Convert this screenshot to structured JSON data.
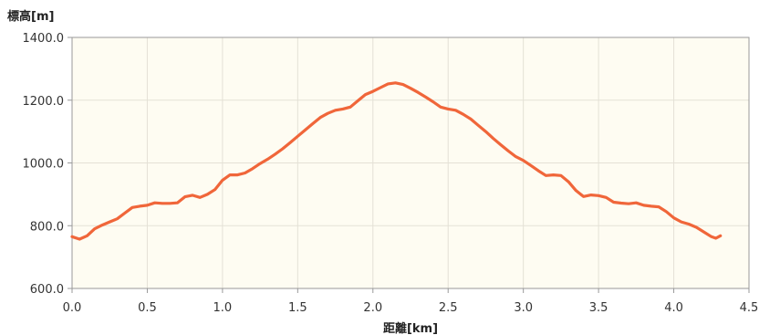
{
  "chart_data": {
    "type": "line",
    "title": "",
    "ylabel": "標高[m]",
    "xlabel": "距離[km]",
    "xlim": [
      0.0,
      4.5
    ],
    "ylim": [
      600.0,
      1400.0
    ],
    "x_ticks": [
      "0.0",
      "0.5",
      "1.0",
      "1.5",
      "2.0",
      "2.5",
      "3.0",
      "3.5",
      "4.0",
      "4.5"
    ],
    "y_ticks": [
      "1400.0",
      "1200.0",
      "1000.0",
      "800.0",
      "600.0"
    ],
    "grid": true,
    "legend": "none",
    "colors": {
      "line": "#f0663a",
      "plot_bg": "#fefcf2",
      "grid": "#e4e1d6",
      "frame": "#999999"
    },
    "series": [
      {
        "values": [
          [
            0.0,
            765
          ],
          [
            0.05,
            757
          ],
          [
            0.1,
            768
          ],
          [
            0.15,
            790
          ],
          [
            0.2,
            802
          ],
          [
            0.25,
            812
          ],
          [
            0.3,
            822
          ],
          [
            0.35,
            840
          ],
          [
            0.4,
            858
          ],
          [
            0.45,
            862
          ],
          [
            0.5,
            865
          ],
          [
            0.55,
            873
          ],
          [
            0.6,
            871
          ],
          [
            0.65,
            871
          ],
          [
            0.7,
            873
          ],
          [
            0.75,
            892
          ],
          [
            0.8,
            897
          ],
          [
            0.85,
            890
          ],
          [
            0.9,
            900
          ],
          [
            0.95,
            915
          ],
          [
            1.0,
            945
          ],
          [
            1.05,
            962
          ],
          [
            1.1,
            962
          ],
          [
            1.15,
            968
          ],
          [
            1.2,
            982
          ],
          [
            1.25,
            998
          ],
          [
            1.3,
            1012
          ],
          [
            1.35,
            1028
          ],
          [
            1.4,
            1045
          ],
          [
            1.45,
            1065
          ],
          [
            1.5,
            1085
          ],
          [
            1.55,
            1105
          ],
          [
            1.6,
            1125
          ],
          [
            1.65,
            1145
          ],
          [
            1.7,
            1158
          ],
          [
            1.75,
            1168
          ],
          [
            1.8,
            1172
          ],
          [
            1.85,
            1178
          ],
          [
            1.9,
            1198
          ],
          [
            1.95,
            1218
          ],
          [
            2.0,
            1228
          ],
          [
            2.05,
            1240
          ],
          [
            2.1,
            1252
          ],
          [
            2.15,
            1255
          ],
          [
            2.2,
            1250
          ],
          [
            2.25,
            1238
          ],
          [
            2.3,
            1225
          ],
          [
            2.35,
            1210
          ],
          [
            2.4,
            1195
          ],
          [
            2.45,
            1178
          ],
          [
            2.5,
            1172
          ],
          [
            2.55,
            1168
          ],
          [
            2.6,
            1155
          ],
          [
            2.65,
            1140
          ],
          [
            2.7,
            1120
          ],
          [
            2.75,
            1100
          ],
          [
            2.8,
            1078
          ],
          [
            2.85,
            1058
          ],
          [
            2.9,
            1038
          ],
          [
            2.95,
            1020
          ],
          [
            3.0,
            1008
          ],
          [
            3.05,
            992
          ],
          [
            3.1,
            975
          ],
          [
            3.15,
            960
          ],
          [
            3.2,
            962
          ],
          [
            3.25,
            960
          ],
          [
            3.3,
            940
          ],
          [
            3.35,
            912
          ],
          [
            3.4,
            893
          ],
          [
            3.45,
            898
          ],
          [
            3.5,
            896
          ],
          [
            3.55,
            890
          ],
          [
            3.6,
            875
          ],
          [
            3.65,
            872
          ],
          [
            3.7,
            870
          ],
          [
            3.75,
            873
          ],
          [
            3.8,
            865
          ],
          [
            3.85,
            862
          ],
          [
            3.9,
            860
          ],
          [
            3.95,
            845
          ],
          [
            4.0,
            825
          ],
          [
            4.05,
            812
          ],
          [
            4.1,
            805
          ],
          [
            4.15,
            795
          ],
          [
            4.2,
            780
          ],
          [
            4.25,
            765
          ],
          [
            4.28,
            760
          ],
          [
            4.31,
            768
          ]
        ]
      }
    ]
  }
}
